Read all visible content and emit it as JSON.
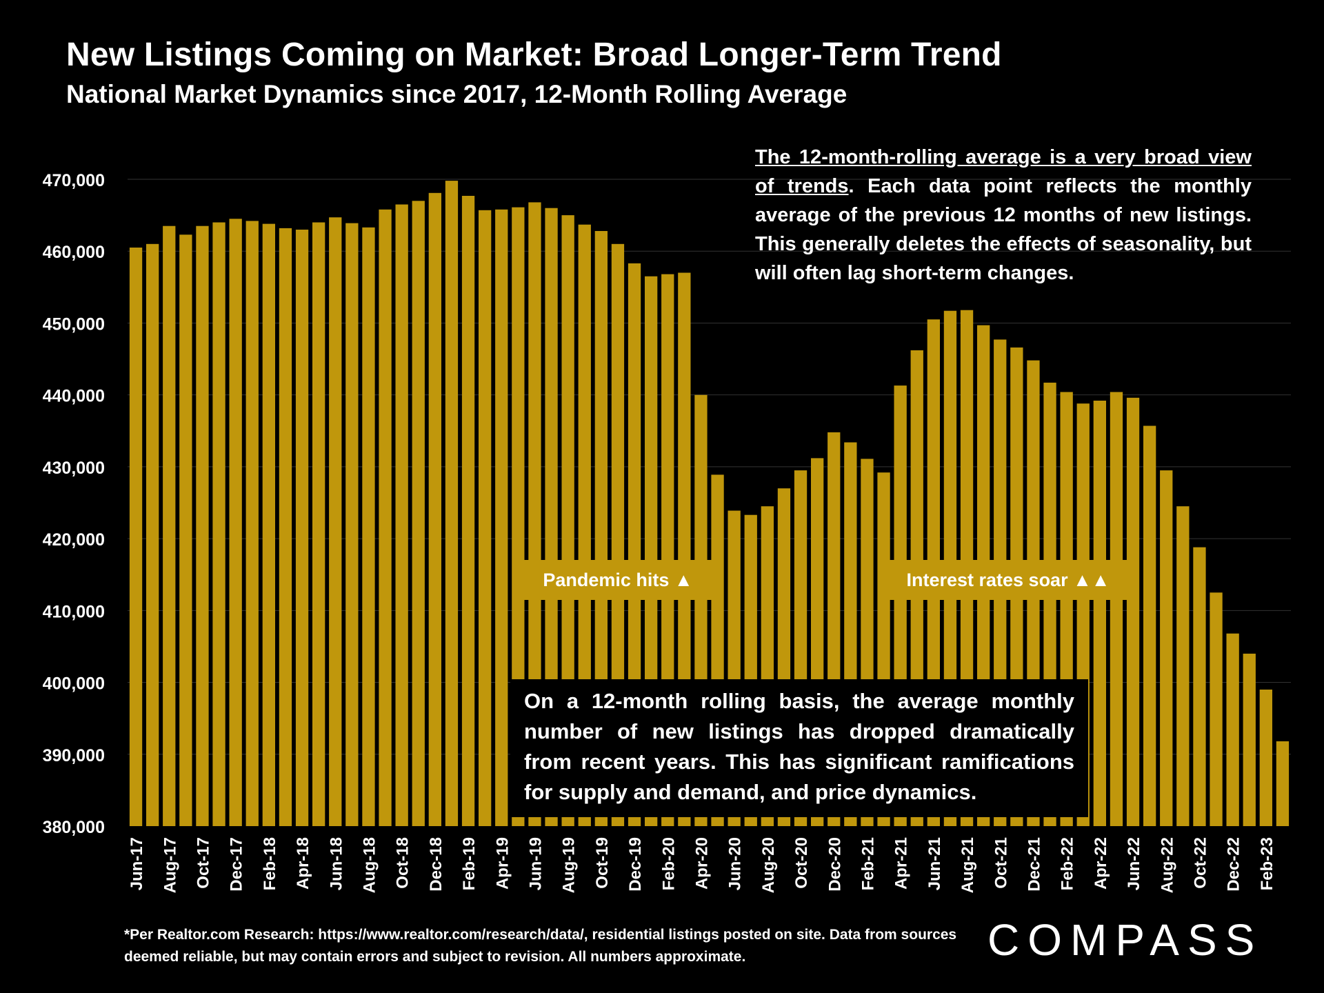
{
  "title": "New Listings Coming on Market: Broad Longer-Term Trend",
  "subtitle": "National Market Dynamics since 2017, 12-Month Rolling Average",
  "note_top_underlined": "The 12-month-rolling average is a very broad view of trends",
  "note_top_rest": ". Each data point reflects the monthly average of the previous 12 months of new listings. This generally deletes the effects of seasonality, but will often lag short-term changes.",
  "event_pandemic": "Pandemic hits ▲",
  "event_rates": "Interest rates soar ▲▲",
  "callout_bottom": "On a 12-month rolling basis, the average monthly number of new listings has dropped dramatically from recent years. This has significant ramifications for supply and demand, and price dynamics.",
  "footnote": "*Per Realtor.com Research:  https://www.realtor.com/research/data/, residential listings posted on site. Data from sources deemed reliable, but may contain errors and subject to revision. All numbers approximate.",
  "logo": "COMPASS",
  "colors": {
    "bar": "#C0970C",
    "background": "#000000",
    "text": "#FFFFFF",
    "grid": "#333333"
  },
  "chart_data": {
    "type": "bar",
    "ylim": [
      380000,
      470000
    ],
    "yticks": [
      380000,
      390000,
      400000,
      410000,
      420000,
      430000,
      440000,
      450000,
      460000,
      470000
    ],
    "ytick_labels": [
      "380,000",
      "390,000",
      "400,000",
      "410,000",
      "420,000",
      "430,000",
      "440,000",
      "450,000",
      "460,000",
      "470,000"
    ],
    "grid": true,
    "categories": [
      "Jun-17",
      "Jul-17",
      "Aug-17",
      "Sep-17",
      "Oct-17",
      "Nov-17",
      "Dec-17",
      "Jan-18",
      "Feb-18",
      "Mar-18",
      "Apr-18",
      "May-18",
      "Jun-18",
      "Jul-18",
      "Aug-18",
      "Sep-18",
      "Oct-18",
      "Nov-18",
      "Dec-18",
      "Jan-19",
      "Feb-19",
      "Mar-19",
      "Apr-19",
      "May-19",
      "Jun-19",
      "Jul-19",
      "Aug-19",
      "Sep-19",
      "Oct-19",
      "Nov-19",
      "Dec-19",
      "Jan-20",
      "Feb-20",
      "Mar-20",
      "Apr-20",
      "May-20",
      "Jun-20",
      "Jul-20",
      "Aug-20",
      "Sep-20",
      "Oct-20",
      "Nov-20",
      "Dec-20",
      "Jan-21",
      "Feb-21",
      "Mar-21",
      "Apr-21",
      "May-21",
      "Jun-21",
      "Jul-21",
      "Aug-21",
      "Sep-21",
      "Oct-21",
      "Nov-21",
      "Dec-21",
      "Jan-22",
      "Feb-22",
      "Mar-22",
      "Apr-22",
      "May-22",
      "Jun-22",
      "Jul-22",
      "Aug-22",
      "Sep-22",
      "Oct-22",
      "Nov-22",
      "Dec-22",
      "Jan-23",
      "Feb-23",
      "Mar-23"
    ],
    "xtick_labels": [
      "Jun-17",
      "",
      "Aug-17",
      "",
      "Oct-17",
      "",
      "Dec-17",
      "",
      "Feb-18",
      "",
      "Apr-18",
      "",
      "Jun-18",
      "",
      "Aug-18",
      "",
      "Oct-18",
      "",
      "Dec-18",
      "",
      "Feb-19",
      "",
      "Apr-19",
      "",
      "Jun-19",
      "",
      "Aug-19",
      "",
      "Oct-19",
      "",
      "Dec-19",
      "",
      "Feb-20",
      "",
      "Apr-20",
      "",
      "Jun-20",
      "",
      "Aug-20",
      "",
      "Oct-20",
      "",
      "Dec-20",
      "",
      "Feb-21",
      "",
      "Apr-21",
      "",
      "Jun-21",
      "",
      "Aug-21",
      "",
      "Oct-21",
      "",
      "Dec-21",
      "",
      "Feb-22",
      "",
      "Apr-22",
      "",
      "Jun-22",
      "",
      "Aug-22",
      "",
      "Oct-22",
      "",
      "Dec-22",
      "",
      "Feb-23",
      ""
    ],
    "values": [
      460500,
      461000,
      463500,
      462300,
      463500,
      464000,
      464500,
      464200,
      463800,
      463200,
      463000,
      464000,
      464700,
      463900,
      463300,
      465800,
      466500,
      467000,
      468100,
      469800,
      467700,
      465700,
      465800,
      466100,
      466800,
      466000,
      465000,
      463700,
      462800,
      461000,
      458300,
      456500,
      456800,
      457000,
      440000,
      428900,
      423900,
      423300,
      424500,
      427000,
      429500,
      431200,
      434800,
      433400,
      431100,
      429200,
      441300,
      446200,
      450500,
      451700,
      451800,
      449700,
      447700,
      446600,
      444800,
      441700,
      440400,
      438800,
      439200,
      440400,
      439600,
      435700,
      429500,
      424500,
      418800,
      412500,
      406800,
      404000,
      399000,
      391800
    ]
  }
}
